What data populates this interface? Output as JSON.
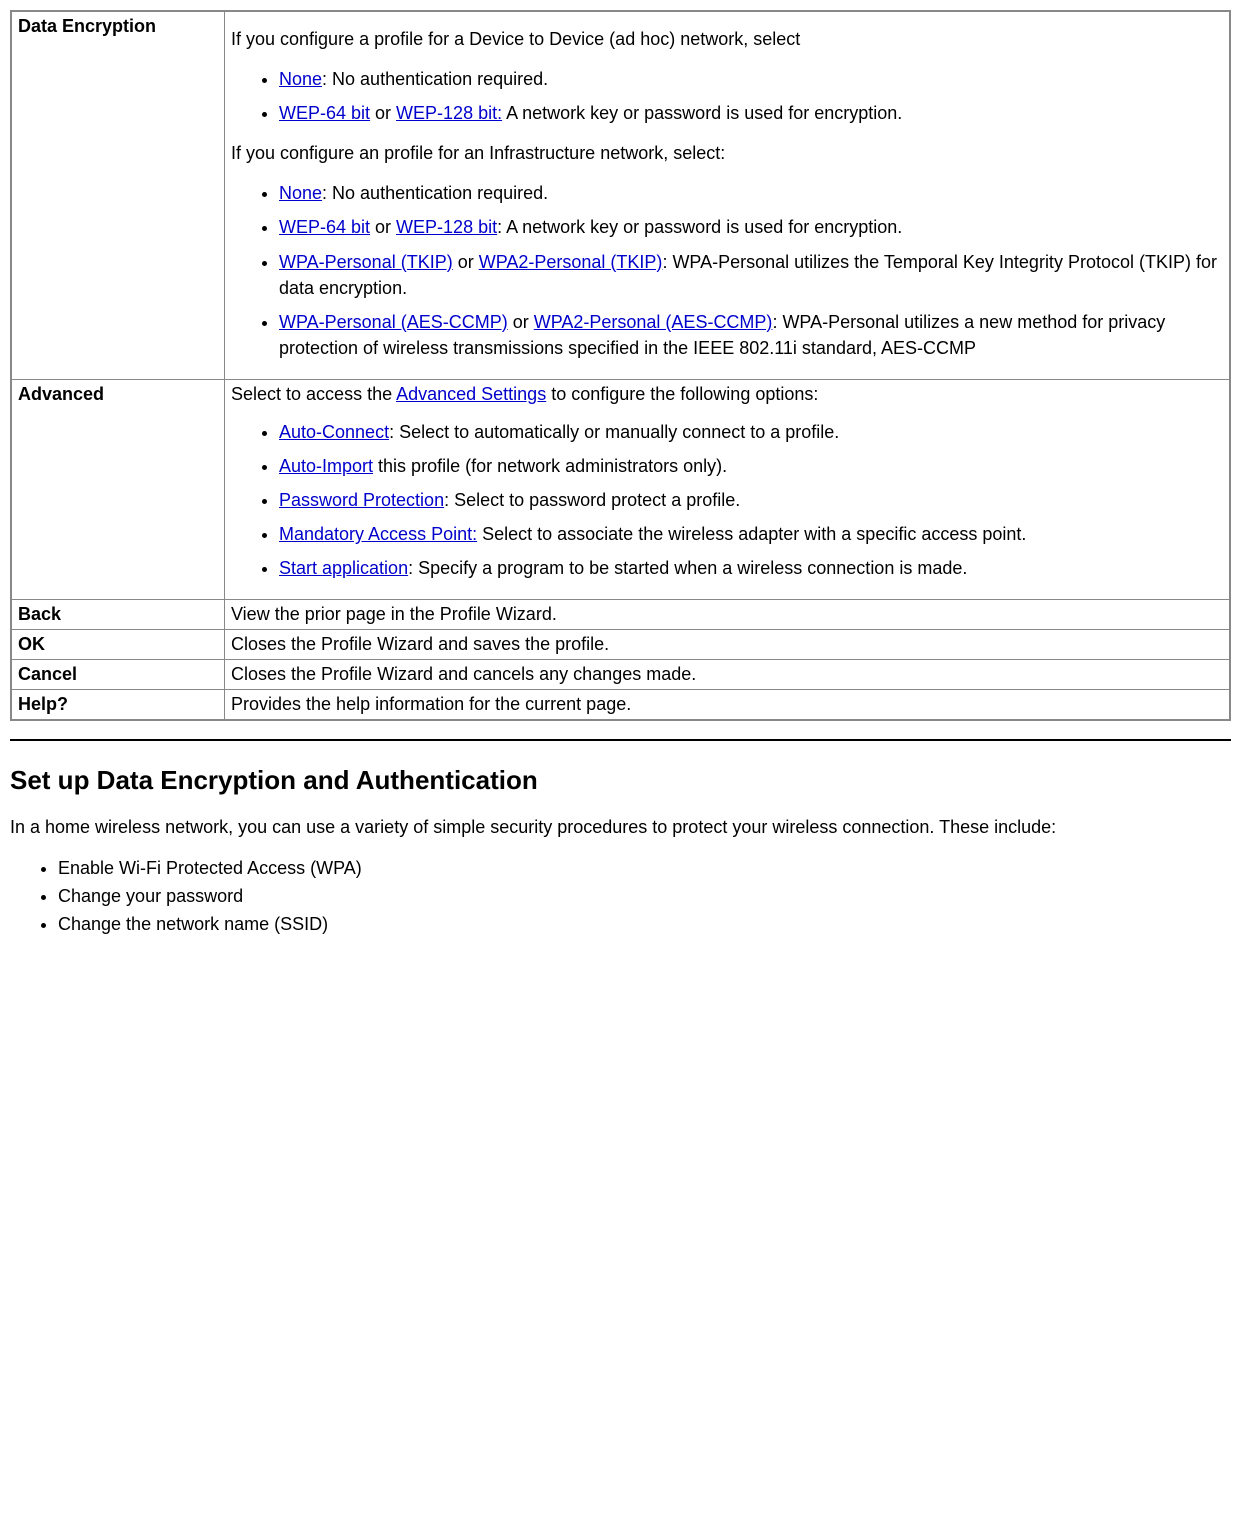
{
  "table": {
    "dataEncryption": {
      "label": "Data Encryption",
      "adhocIntro": "If you configure a profile for a Device to Device (ad hoc) network, select",
      "adhoc": {
        "noneLink": "None",
        "noneText": ": No authentication required.",
        "wep64Link": "WEP-64 bit",
        "orText": " or ",
        "wep128Link": "WEP-128 bit:",
        "wepText": " A network key or password is used for encryption."
      },
      "infraIntro": "If you configure an profile for an Infrastructure network, select:",
      "infra": {
        "noneLink": "None",
        "noneText": ": No authentication required.",
        "wep64Link": "WEP-64 bit",
        "orText": " or ",
        "wep128Link": "WEP-128 bit",
        "wepText": ": A network key or password is used for encryption.",
        "wpaTkipLink": "WPA-Personal (TKIP)",
        "wpa2TkipLink": "WPA2-Personal (TKIP)",
        "tkipText": ": WPA-Personal utilizes the Temporal Key Integrity Protocol (TKIP) for data encryption.",
        "wpaAesLink": "WPA-Personal (AES-CCMP)",
        "wpa2AesLink": "WPA2-Personal (AES-CCMP)",
        "aesText": ": WPA-Personal utilizes a new method for privacy protection of wireless transmissions specified in the IEEE 802.11i standard, AES-CCMP"
      }
    },
    "advanced": {
      "label": "Advanced",
      "introPre": "Select to access the ",
      "advSettingsLink": "Advanced Settings",
      "introPost": " to configure the following options:",
      "items": {
        "autoConnectLink": "Auto-Connect",
        "autoConnectText": ": Select to automatically or manually connect to a profile.",
        "autoImportLink": "Auto-Import",
        "autoImportText": " this profile (for network administrators only).",
        "passwordLink": "Password Protection",
        "passwordText": ": Select to password protect a profile.",
        "mapLink": "Mandatory Access Point:",
        "mapText": " Select to associate the wireless adapter with a specific access point.",
        "startAppLink": "Start application",
        "startAppText": ": Specify a program to be started when a wireless connection is made."
      }
    },
    "back": {
      "label": "Back",
      "desc": "View the prior page in the Profile Wizard."
    },
    "ok": {
      "label": "OK",
      "desc": "Closes the Profile Wizard and saves the profile."
    },
    "cancel": {
      "label": "Cancel",
      "desc": "Closes the Profile Wizard and cancels any changes made."
    },
    "help": {
      "label": "Help?",
      "desc": "Provides the help information for the current page."
    }
  },
  "section": {
    "heading": "Set up Data Encryption and Authentication",
    "intro": "In a home wireless network, you can use a variety of simple security procedures to protect your wireless connection. These include:",
    "bullets": {
      "b1": "Enable Wi-Fi Protected Access (WPA)",
      "b2": "Change your password",
      "b3": "Change the network name (SSID)"
    }
  }
}
